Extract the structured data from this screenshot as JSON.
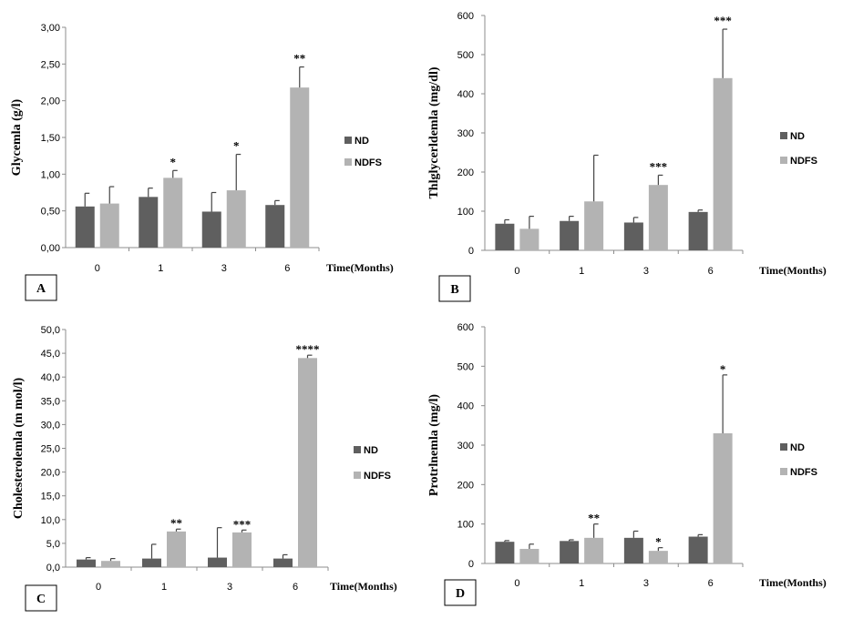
{
  "colors": {
    "ND": "#5f5f5f",
    "NDFS": "#b3b3b3",
    "axis": "#8c8c8c",
    "error": "#444444"
  },
  "chart_data": [
    {
      "panel": "A",
      "type": "bar",
      "ylabel": "Glycemla (g/l)",
      "xlabel": "Time(Months)",
      "categories": [
        "0",
        "1",
        "3",
        "6"
      ],
      "ylim": [
        0,
        3
      ],
      "yticks": [
        "0,00",
        "0,50",
        "1,00",
        "1,50",
        "2,00",
        "2,50",
        "3,00"
      ],
      "ytick_values": [
        0,
        0.5,
        1,
        1.5,
        2,
        2.5,
        3
      ],
      "legend": [
        "ND",
        "NDFS"
      ],
      "series": [
        {
          "name": "ND",
          "values": [
            0.56,
            0.69,
            0.49,
            0.58
          ],
          "errors": [
            0.18,
            0.12,
            0.26,
            0.06
          ]
        },
        {
          "name": "NDFS",
          "values": [
            0.6,
            0.95,
            0.78,
            2.18
          ],
          "errors": [
            0.23,
            0.1,
            0.49,
            0.28
          ]
        }
      ],
      "significance": [
        "",
        "*",
        "*",
        "**"
      ]
    },
    {
      "panel": "B",
      "type": "bar",
      "ylabel": "Thlglycerldemla (mg/dl)",
      "xlabel": "Time(Months)",
      "categories": [
        "0",
        "1",
        "3",
        "6"
      ],
      "ylim": [
        0,
        600
      ],
      "yticks": [
        "0",
        "100",
        "200",
        "300",
        "400",
        "500",
        "600"
      ],
      "ytick_values": [
        0,
        100,
        200,
        300,
        400,
        500,
        600
      ],
      "legend": [
        "ND",
        "NDFS"
      ],
      "series": [
        {
          "name": "ND",
          "values": [
            68,
            75,
            71,
            98
          ],
          "errors": [
            10,
            12,
            13,
            5
          ]
        },
        {
          "name": "NDFS",
          "values": [
            55,
            125,
            167,
            440
          ],
          "errors": [
            32,
            118,
            25,
            125
          ]
        }
      ],
      "significance": [
        "",
        "",
        "***",
        "***"
      ]
    },
    {
      "panel": "C",
      "type": "bar",
      "ylabel": "Cholesterolemla (m mol/l)",
      "xlabel": "Time(Months)",
      "categories": [
        "0",
        "1",
        "3",
        "6"
      ],
      "ylim": [
        0,
        50
      ],
      "yticks": [
        "0,0",
        "5,0",
        "10,0",
        "15,0",
        "20,0",
        "25,0",
        "30,0",
        "35,0",
        "40,0",
        "45,0",
        "50,0"
      ],
      "ytick_values": [
        0,
        5,
        10,
        15,
        20,
        25,
        30,
        35,
        40,
        45,
        50
      ],
      "legend": [
        "ND",
        "NDFS"
      ],
      "series": [
        {
          "name": "ND",
          "values": [
            1.6,
            1.8,
            2.0,
            1.8
          ],
          "errors": [
            0.4,
            3.0,
            6.3,
            0.8
          ]
        },
        {
          "name": "NDFS",
          "values": [
            1.3,
            7.5,
            7.3,
            44.0
          ],
          "errors": [
            0.5,
            0.5,
            0.5,
            0.6
          ]
        }
      ],
      "significance": [
        "",
        "**",
        "***",
        "****"
      ]
    },
    {
      "panel": "D",
      "type": "bar",
      "ylabel": "Protrlnemla (mg/l)",
      "xlabel": "Time(Months)",
      "categories": [
        "0",
        "1",
        "3",
        "6"
      ],
      "ylim": [
        0,
        600
      ],
      "yticks": [
        "0",
        "100",
        "200",
        "300",
        "400",
        "500",
        "600"
      ],
      "ytick_values": [
        0,
        100,
        200,
        300,
        400,
        500,
        600
      ],
      "legend": [
        "ND",
        "NDFS"
      ],
      "series": [
        {
          "name": "ND",
          "values": [
            55,
            57,
            65,
            68
          ],
          "errors": [
            3,
            3,
            17,
            5
          ]
        },
        {
          "name": "NDFS",
          "values": [
            37,
            65,
            32,
            330
          ],
          "errors": [
            12,
            35,
            8,
            148
          ]
        }
      ],
      "significance": [
        "",
        "**",
        "*",
        "*"
      ]
    }
  ]
}
